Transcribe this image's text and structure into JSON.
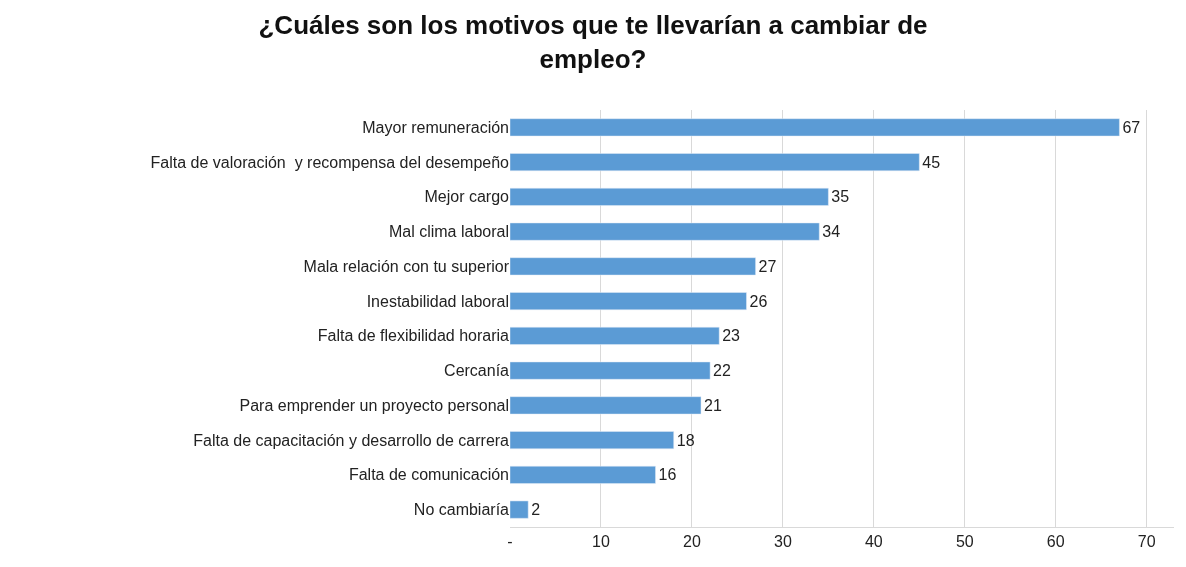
{
  "chart_data": {
    "type": "bar",
    "orientation": "horizontal",
    "title": "¿Cuáles son los motivos que te llevarían a cambiar de empleo?",
    "categories": [
      "Mayor remuneración",
      "Falta de valoración  y recompensa del desempeño",
      "Mejor cargo",
      "Mal clima laboral",
      "Mala relación con tu superior",
      "Inestabilidad laboral",
      "Falta de flexibilidad horaria",
      "Cercanía",
      "Para emprender un proyecto personal",
      "Falta de capacitación y desarrollo de carrera",
      "Falta de comunicación",
      "No cambiaría"
    ],
    "values": [
      67,
      45,
      35,
      34,
      27,
      26,
      23,
      22,
      21,
      18,
      16,
      2
    ],
    "color": "#5b9bd5",
    "data_labels": true,
    "grid": "x",
    "legend": false,
    "xlim": [
      0,
      73
    ],
    "xticks": [
      {
        "value": 0,
        "label": "-"
      },
      10,
      20,
      30,
      40,
      50,
      60,
      70
    ]
  }
}
